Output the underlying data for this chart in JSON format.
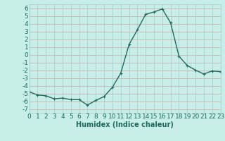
{
  "x": [
    0,
    1,
    2,
    3,
    4,
    5,
    6,
    7,
    8,
    9,
    10,
    11,
    12,
    13,
    14,
    15,
    16,
    17,
    18,
    19,
    20,
    21,
    22,
    23
  ],
  "y": [
    -4.8,
    -5.2,
    -5.3,
    -5.7,
    -5.6,
    -5.8,
    -5.8,
    -6.5,
    -5.9,
    -5.4,
    -4.2,
    -2.4,
    1.3,
    3.2,
    5.2,
    5.5,
    5.9,
    4.1,
    -0.2,
    -1.4,
    -2.0,
    -2.5,
    -2.1,
    -2.2
  ],
  "line_color": "#1e6b5e",
  "marker": "+",
  "marker_size": 3,
  "marker_lw": 0.8,
  "bg_color": "#c8eee8",
  "grid_color_h": "#d8a0a0",
  "grid_color_v": "#a0ccc8",
  "xlabel": "Humidex (Indice chaleur)",
  "ylim": [
    -7.5,
    6.5
  ],
  "xlim": [
    0,
    23
  ],
  "ytick_values": [
    -7,
    -6,
    -5,
    -4,
    -3,
    -2,
    -1,
    0,
    1,
    2,
    3,
    4,
    5,
    6
  ],
  "line_width": 1.0,
  "text_color": "#1e6b5e",
  "xlabel_fontsize": 7,
  "tick_fontsize": 6.5
}
